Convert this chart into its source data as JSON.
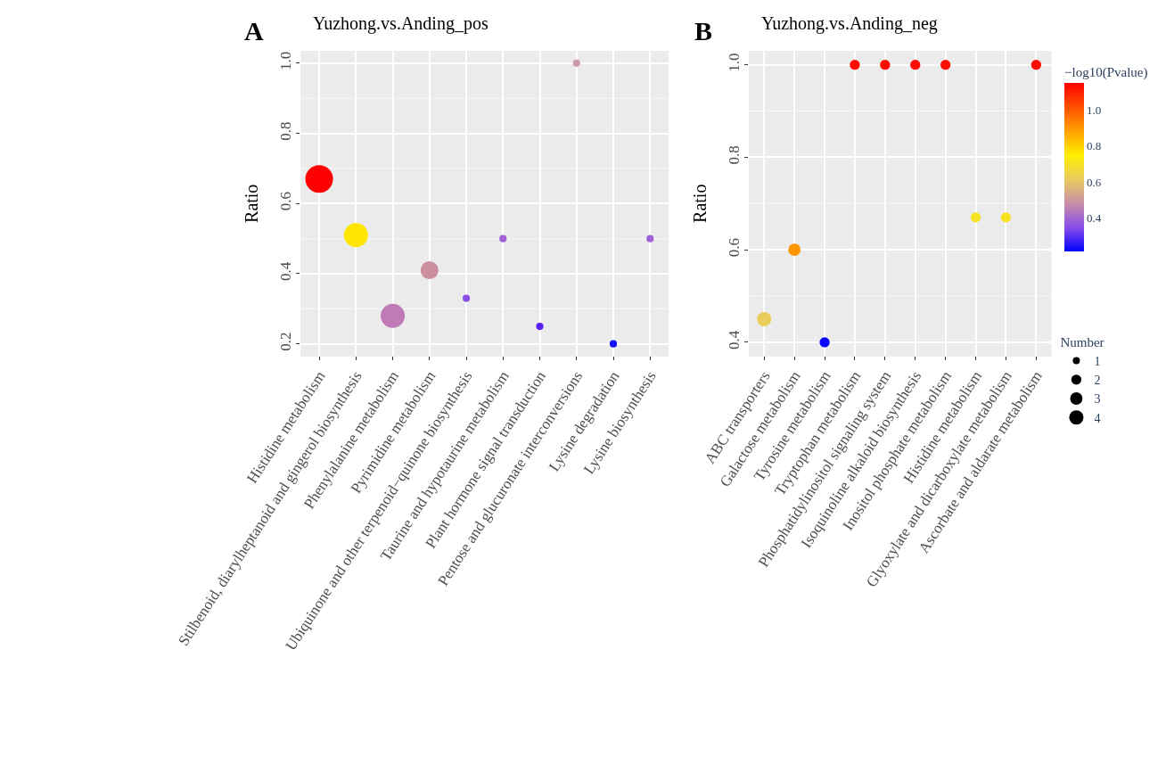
{
  "chart_data": [
    {
      "type": "bubble",
      "title": "Yuzhong.vs.Anding_pos",
      "ylabel": "Ratio",
      "annotations": [
        "A"
      ],
      "categories": [
        "Histidine metabolism",
        "Stilbenoid, diarylheptanoid and gingerol biosynthesis",
        "Phenylalanine metabolism",
        "Pyrimidine metabolism",
        "Ubiquinone and other terpenoid−quinone biosynthesis",
        "Taurine and hypotaurine metabolism",
        "Plant hormone signal transduction",
        "Pentose and glucuronate interconversions",
        "Lysine degradation",
        "Lysine biosynthesis"
      ],
      "values": [
        0.67,
        0.51,
        0.28,
        0.41,
        0.33,
        0.5,
        0.25,
        1.0,
        0.2,
        0.5
      ],
      "sizes": [
        1,
        0.76,
        0.76,
        0.42,
        0.07,
        0.07,
        0.07,
        0.07,
        0.07,
        0.07
      ],
      "colors": [
        "#ff0000",
        "#ffe600",
        "#c07ab8",
        "#cc8fa0",
        "#8a4ee8",
        "#a060d8",
        "#5a20f0",
        "#cc9aa8",
        "#1010f0",
        "#a060d8"
      ],
      "ylim": [
        0.165,
        1.035
      ],
      "yticks": [
        0.2,
        0.4,
        0.6,
        0.8,
        {
          "value": 1.0,
          "label": "1.0"
        }
      ],
      "grid": true
    },
    {
      "type": "bubble",
      "title": "Yuzhong.vs.Anding_neg",
      "ylabel": "Ratio",
      "annotations": [
        "B"
      ],
      "categories": [
        "ABC transporters",
        "Galactose metabolism",
        "Tyrosine metabolism",
        "Tryptophan metabolism",
        "Phosphatidylinositol signaling system",
        "Isoquinoline alkaloid biosynthesis",
        "Inositol phosphate metabolism",
        "Histidine metabolism",
        "Glyoxylate and dicarboxylate metabolism",
        "Ascorbate and aldarate metabolism"
      ],
      "values": [
        0.45,
        0.6,
        0.4,
        1.0,
        1.0,
        1.0,
        1.0,
        0.67,
        0.67,
        1.0
      ],
      "sizes": [
        4,
        3,
        2,
        2,
        2,
        2,
        2,
        2,
        2,
        2
      ],
      "size_legend": [
        1,
        2,
        3,
        4
      ],
      "legend_title": "Number",
      "cvalues": [
        0.62,
        0.9,
        0.22,
        1.13,
        1.13,
        1.13,
        1.13,
        0.7,
        0.7,
        1.13
      ],
      "clabel": "−log10(Pvalue)",
      "clim": [
        0.21,
        1.15
      ],
      "cticks": [
        0.4,
        0.6,
        0.8,
        {
          "value": 1.0,
          "label": "1.0"
        }
      ],
      "ylim": [
        0.37,
        1.03
      ],
      "yticks": [
        0.4,
        0.6,
        0.8,
        {
          "value": 1.0,
          "label": "1.0"
        }
      ],
      "grid": true
    }
  ]
}
